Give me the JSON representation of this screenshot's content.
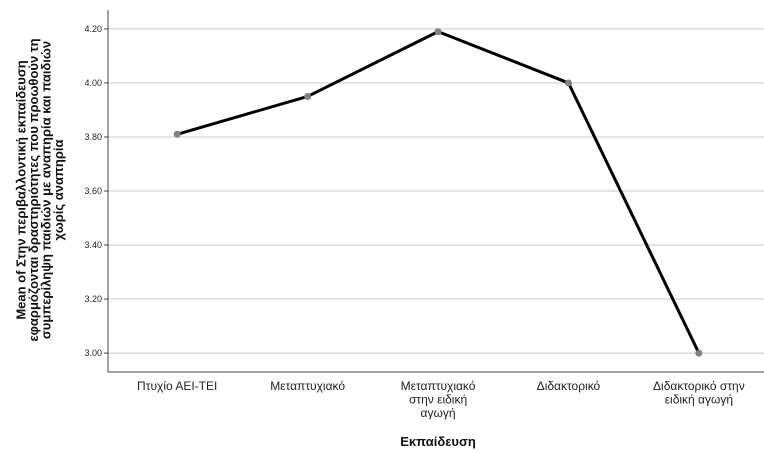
{
  "chart_data": {
    "type": "line",
    "categories": [
      [
        "Πτυχίο ΑΕΙ-ΤΕΙ"
      ],
      [
        "Μεταπτυχιακό"
      ],
      [
        "Μεταπτυχιακό",
        "στην ειδική",
        "αγωγή"
      ],
      [
        "Διδακτορικό"
      ],
      [
        "Διδακτορικό στην",
        "ειδική αγωγή"
      ]
    ],
    "values": [
      3.81,
      3.95,
      4.19,
      4.0,
      3.0
    ],
    "xlabel": "Εκπαίδευση",
    "ylabel": [
      "Mean of Στην περιβαλλοντική εκπαίδευση",
      "εφαρμόζονται δραστηριότητες που προωθούν τη",
      "συμπερίληψη παιδιών με αναπηρία και παιδιών",
      "χωρίς αναπηρία"
    ],
    "yticks": [
      "3.00",
      "3.20",
      "3.40",
      "3.60",
      "3.80",
      "4.00",
      "4.20"
    ],
    "ylim": [
      2.93,
      4.27
    ],
    "grid": "horizontal",
    "colors": {
      "line": "#000000",
      "marker": "#808080",
      "grid": "#c8c8c8",
      "axis": "#444444"
    }
  }
}
